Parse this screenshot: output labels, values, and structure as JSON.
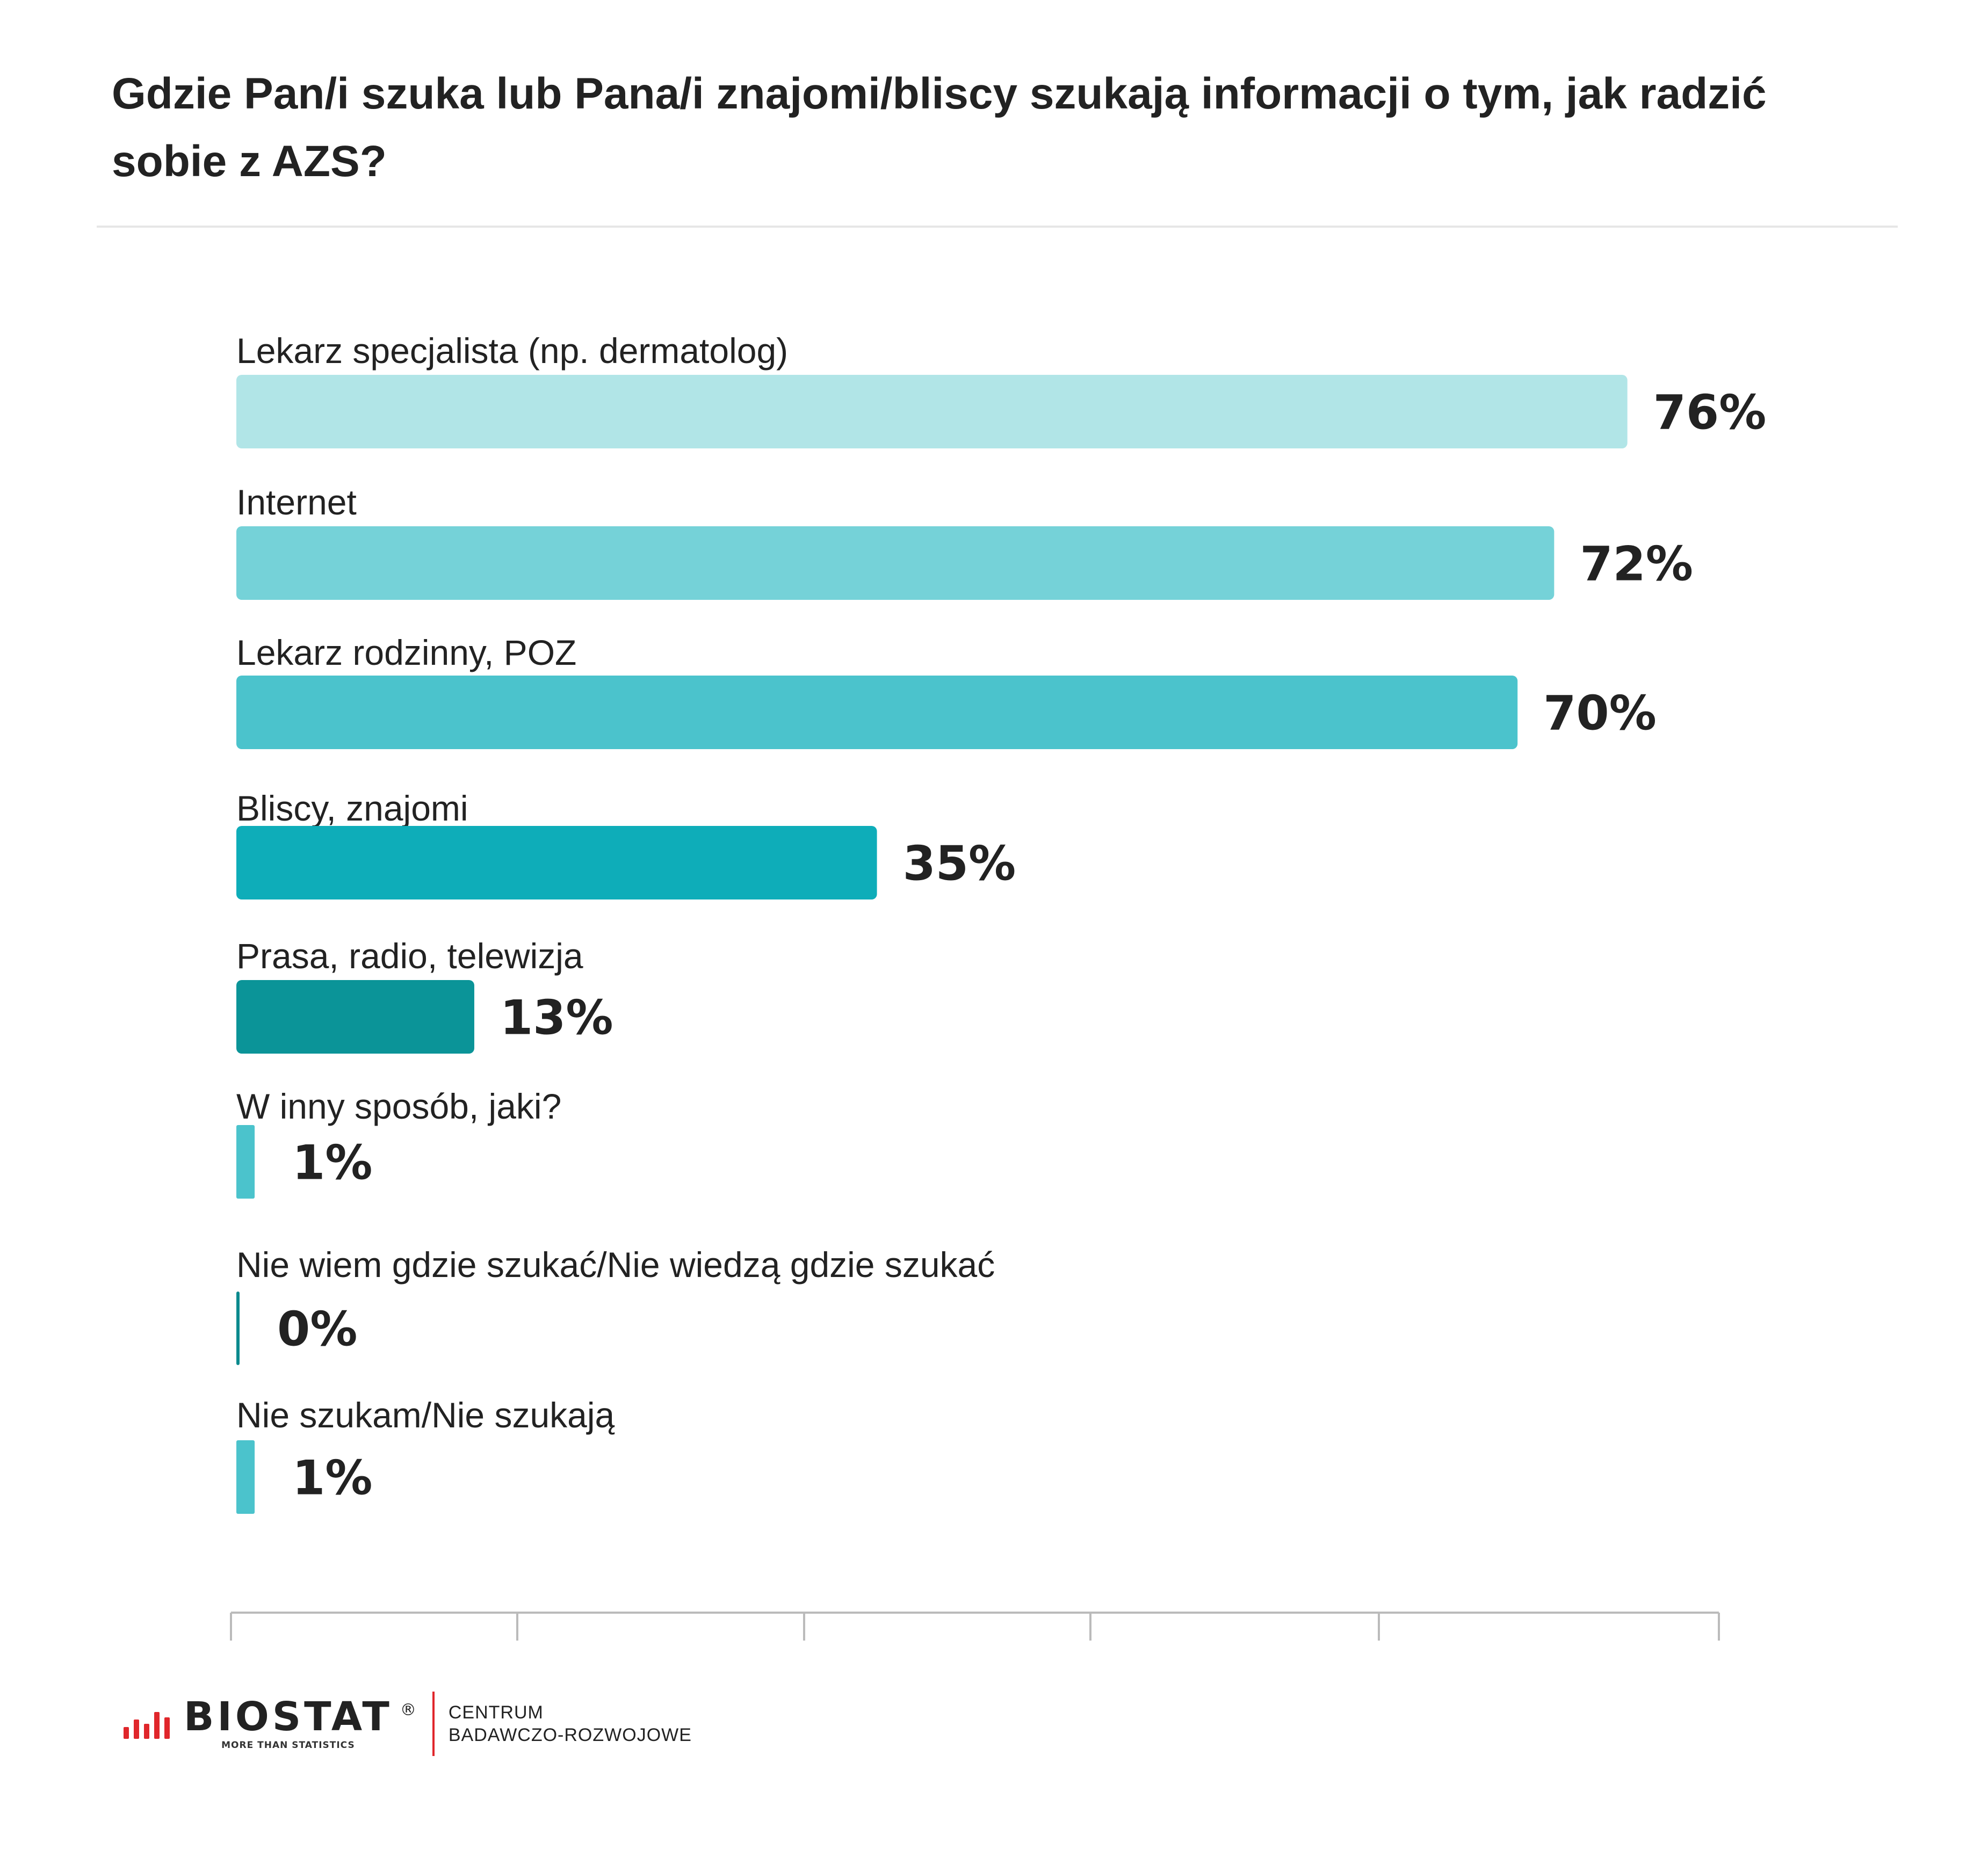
{
  "title": "Gdzie Pan/i szuka lub Pana/i znajomi/bliscy szukają informacji o tym, jak radzić sobie z AZS?",
  "chart_data": {
    "type": "bar",
    "orientation": "horizontal",
    "categories": [
      "Lekarz specjalista (np. dermatolog)",
      "Internet",
      "Lekarz rodzinny, POZ",
      "Bliscy, znajomi",
      "Prasa, radio, telewizja",
      "W inny sposób, jaki?",
      "Nie wiem gdzie szukać/Nie wiedzą gdzie szukać",
      "Nie szukam/Nie szukają"
    ],
    "values": [
      76,
      72,
      70,
      35,
      13,
      1,
      0,
      1
    ],
    "value_labels": [
      "76%",
      "72%",
      "70%",
      "35%",
      "13%",
      "1%",
      "0%",
      "1%"
    ],
    "colors": [
      "#b1e5e7",
      "#75d2d8",
      "#4bc3cc",
      "#0eadb9",
      "#0b9498",
      "#4bc3cc",
      "#0b8a8e",
      "#4bc3cc"
    ],
    "xlim": [
      0,
      81
    ],
    "unit": "%",
    "grid": false,
    "legend": "none"
  },
  "logo": {
    "brand": "BIOSTAT",
    "registered": "®",
    "tagline": "MORE THAN STATISTICS",
    "division_line1": "CENTRUM",
    "division_line2": "BADAWCZO-ROZWOJOWE",
    "accent_color": "#e0262b"
  }
}
